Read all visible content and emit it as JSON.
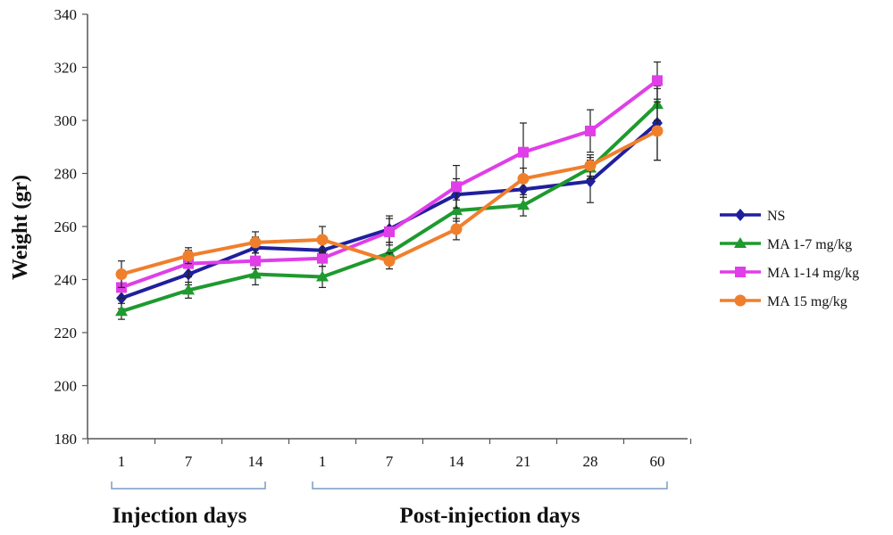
{
  "chart_data": {
    "type": "line",
    "ylabel": "Weight (gr)",
    "ylim": [
      180,
      340
    ],
    "yticks": [
      180,
      200,
      220,
      240,
      260,
      280,
      300,
      320,
      340
    ],
    "categories": [
      "1",
      "7",
      "14",
      "1",
      "7",
      "14",
      "21",
      "28",
      "60"
    ],
    "groups": [
      {
        "label": "Injection days",
        "from": 0,
        "to": 2
      },
      {
        "label": "Post-injection days",
        "from": 3,
        "to": 8
      }
    ],
    "legend_position": "right",
    "series": [
      {
        "name": "NS",
        "color": "#1f1f9e",
        "marker": "diamond",
        "values": [
          233,
          242,
          252,
          251,
          259,
          272,
          274,
          277,
          299
        ],
        "errors": [
          4,
          4,
          4,
          4,
          5,
          6,
          3,
          8,
          14
        ]
      },
      {
        "name": "MA 1-7 mg/kg",
        "color": "#1e9a2e",
        "marker": "triangle",
        "values": [
          228,
          236,
          242,
          241,
          250,
          266,
          268,
          282,
          306
        ],
        "errors": [
          3,
          3,
          4,
          4,
          4,
          4,
          4,
          4,
          6
        ]
      },
      {
        "name": "MA 1-14 mg/kg",
        "color": "#e03ee8",
        "marker": "square",
        "values": [
          237,
          246,
          247,
          248,
          258,
          275,
          288,
          296,
          315
        ],
        "errors": [
          4,
          5,
          3,
          3,
          5,
          8,
          11,
          8,
          7
        ]
      },
      {
        "name": "MA 15 mg/kg",
        "color": "#f07f2c",
        "marker": "circle",
        "values": [
          242,
          249,
          254,
          255,
          247,
          259,
          278,
          283,
          296
        ],
        "errors": [
          5,
          3,
          4,
          5,
          3,
          4,
          4,
          4,
          11
        ]
      }
    ]
  }
}
